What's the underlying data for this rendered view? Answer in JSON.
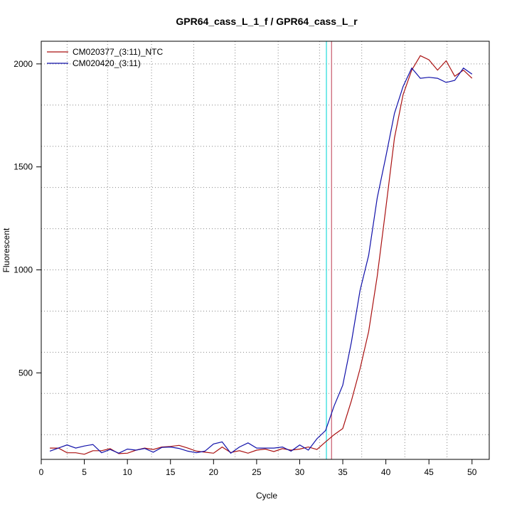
{
  "chart_data": {
    "type": "line",
    "title": "GPR64_cass_L_1_f / GPR64_cass_L_r",
    "xlabel": "Cycle",
    "ylabel": "Fluorescent",
    "xlim": [
      0,
      52
    ],
    "ylim": [
      80,
      2110
    ],
    "x_ticks": [
      0,
      5,
      10,
      15,
      20,
      25,
      30,
      35,
      40,
      45,
      50
    ],
    "y_ticks": [
      500,
      1000,
      1500,
      2000
    ],
    "grid": true,
    "x_grid": [
      3,
      7.7,
      12.8,
      17.7,
      22.5,
      27.5,
      32.3,
      37.2,
      42.2,
      47.1
    ],
    "y_grid": [
      200,
      400,
      600,
      800,
      1000,
      1200,
      1400,
      1600,
      1800,
      2000
    ],
    "legend_position": "top-left",
    "thresholds": [
      {
        "x": 33.1,
        "color": "#33dddd"
      },
      {
        "x": 33.7,
        "color": "#cc6677"
      }
    ],
    "series": [
      {
        "name": "CM020377_(3:11)_NTC",
        "color": "#aa1111",
        "x": [
          1,
          2,
          3,
          4,
          5,
          6,
          7,
          8,
          9,
          10,
          11,
          12,
          13,
          14,
          15,
          16,
          17,
          18,
          19,
          20,
          21,
          22,
          23,
          24,
          25,
          26,
          27,
          28,
          29,
          30,
          31,
          32,
          33,
          34,
          35,
          36,
          37,
          38,
          39,
          40,
          41,
          42,
          43,
          44,
          45,
          46,
          47,
          48,
          49,
          50
        ],
        "y": [
          135,
          135,
          112,
          112,
          105,
          122,
          122,
          132,
          108,
          110,
          125,
          135,
          128,
          140,
          143,
          148,
          135,
          120,
          115,
          110,
          140,
          113,
          122,
          110,
          125,
          130,
          118,
          132,
          125,
          130,
          140,
          128,
          165,
          200,
          230,
          365,
          520,
          700,
          970,
          1300,
          1640,
          1850,
          1970,
          2040,
          2020,
          1970,
          2015,
          1940,
          1970,
          1930
        ]
      },
      {
        "name": "CM020420_(3:11)",
        "color": "#1111aa",
        "x": [
          1,
          2,
          3,
          4,
          5,
          6,
          7,
          8,
          9,
          10,
          11,
          12,
          13,
          14,
          15,
          16,
          17,
          18,
          19,
          20,
          21,
          22,
          23,
          24,
          25,
          26,
          27,
          28,
          29,
          30,
          31,
          32,
          33,
          34,
          35,
          36,
          37,
          38,
          39,
          40,
          41,
          42,
          43,
          44,
          45,
          46,
          47,
          48,
          49,
          50
        ],
        "y": [
          120,
          135,
          150,
          135,
          145,
          152,
          112,
          128,
          110,
          130,
          125,
          133,
          115,
          138,
          140,
          133,
          120,
          112,
          120,
          155,
          165,
          110,
          140,
          160,
          135,
          135,
          135,
          140,
          120,
          150,
          125,
          180,
          220,
          340,
          440,
          650,
          900,
          1070,
          1350,
          1550,
          1760,
          1890,
          1980,
          1930,
          1935,
          1930,
          1910,
          1920,
          1980,
          1950
        ]
      }
    ]
  }
}
